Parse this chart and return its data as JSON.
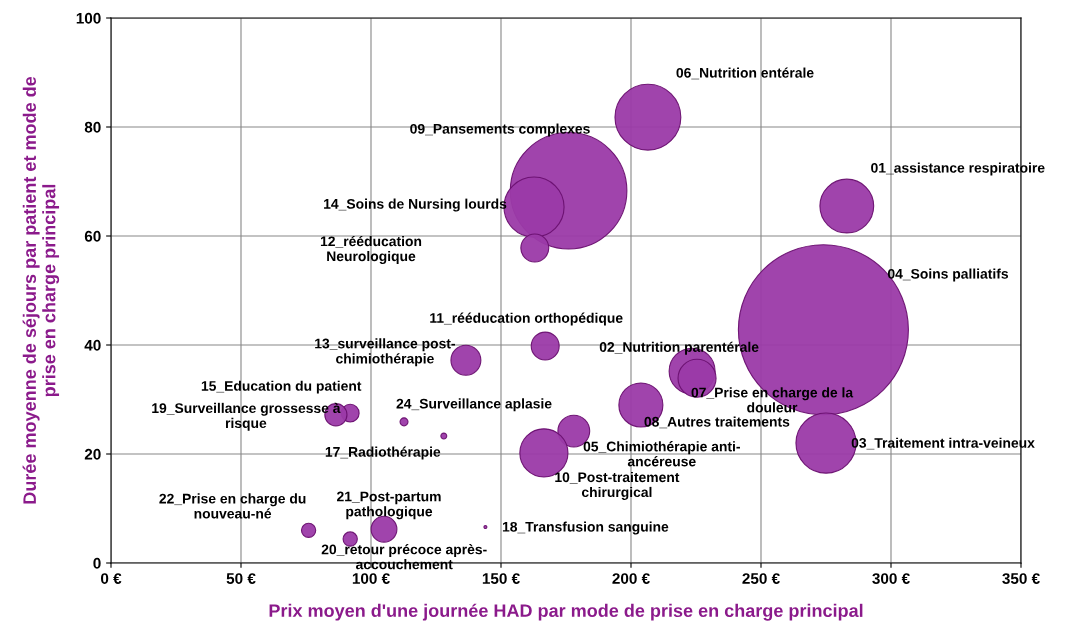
{
  "chart_data": {
    "type": "bubble",
    "xlabel": "Prix moyen d'une journée HAD par mode de prise en charge principal",
    "ylabel": "Durée moyenne de séjours par patient et mode de\nprise en charge principal",
    "xlim": [
      0,
      350
    ],
    "ylim": [
      0,
      100
    ],
    "xticks": [
      {
        "value": 0,
        "label": "0 €"
      },
      {
        "value": 50,
        "label": "50 €"
      },
      {
        "value": 100,
        "label": "100 €"
      },
      {
        "value": 150,
        "label": "150 €"
      },
      {
        "value": 200,
        "label": "200 €"
      },
      {
        "value": 250,
        "label": "250 €"
      },
      {
        "value": 300,
        "label": "300 €"
      },
      {
        "value": 350,
        "label": "350 €"
      }
    ],
    "yticks": [
      0,
      20,
      40,
      60,
      80,
      100
    ],
    "grid": true,
    "legend": false,
    "marker": "circle",
    "series": [
      {
        "color": "#9b3aa8",
        "x": [
          206.5,
          176,
          162.7,
          283,
          163,
          274,
          167,
          136.5,
          223.5,
          225.4,
          203.8,
          275,
          178,
          166.5,
          92,
          86.5,
          112.7,
          128,
          76,
          105,
          92,
          144
        ],
        "values": [
          81.8,
          68.3,
          65.3,
          65.5,
          57.8,
          42.8,
          39.8,
          37.2,
          35.2,
          33.9,
          29,
          22,
          24.2,
          20.2,
          27.5,
          27.2,
          25.9,
          23.3,
          6,
          6.2,
          4.4,
          6.6
        ],
        "sizes": [
          0.15,
          0.47,
          0.125,
          0.1,
          0.027,
          1,
          0.027,
          0.031,
          0.073,
          0.05,
          0.067,
          0.125,
          0.035,
          0.08,
          0.011,
          0.017,
          0.0022,
          0.0012,
          0.007,
          0.023,
          0.007,
          0.0003
        ]
      }
    ],
    "annotations": [
      "06_Nutrition entérale",
      "09_Pansements complexes",
      {
        "text": "14_Soins de Nursing lourds",
        "x": 162.7,
        "y": 65.3
      },
      {
        "text": "01_assistance respiratoire",
        "x": 283,
        "y": 65.5
      },
      "12_rééducation\nNeurologique",
      "04_Soins palliatifs",
      {
        "text": "11_rééducation orthopédique",
        "x": 167,
        "y": 39.8
      },
      {
        "text": "13_surveillance post-\nchimiothérapie",
        "x": 136.5,
        "y": 37.2
      },
      {
        "text": "02_Nutrition parentérale",
        "x": 223.5,
        "y": 35.2
      },
      {
        "text": "07_Prise en charge de la\ndouleur",
        "x": 225.4,
        "y": 33.9
      },
      {
        "text": "08_Autres traitements",
        "x": 203.8,
        "y": 29
      },
      {
        "text": "03_Traitement intra-veineux",
        "x": 275,
        "y": 22
      },
      {
        "text": "05_Chimiothérapie anti-\nancéreuse",
        "x": 178,
        "y": 24.2
      },
      {
        "text": "10_Post-traitement\nchirurgical",
        "x": 166.5,
        "y": 20.2
      },
      {
        "text": "15_Education du patient",
        "x": 92,
        "y": 27.5
      },
      {
        "text": "19_Surveillance grossesse à\nrisque",
        "x": 86.5,
        "y": 27.2
      },
      {
        "text": "24_Surveillance aplasie",
        "x": 112.7,
        "y": 25.9
      },
      {
        "text": "17_Radiothérapie",
        "x": 128,
        "y": 23.3
      },
      {
        "text": "22_Prise en charge du\nnouveau-né",
        "x": 76,
        "y": 6
      },
      {
        "text": "21_Post-partum\npathologique",
        "x": 105,
        "y": 6.2
      },
      {
        "text": "20_retour précoce après-\naccouchement",
        "x": 92,
        "y": 4.4
      },
      {
        "text": "18_Transfusion sanguine",
        "x": 144,
        "y": 6.6
      }
    ]
  }
}
